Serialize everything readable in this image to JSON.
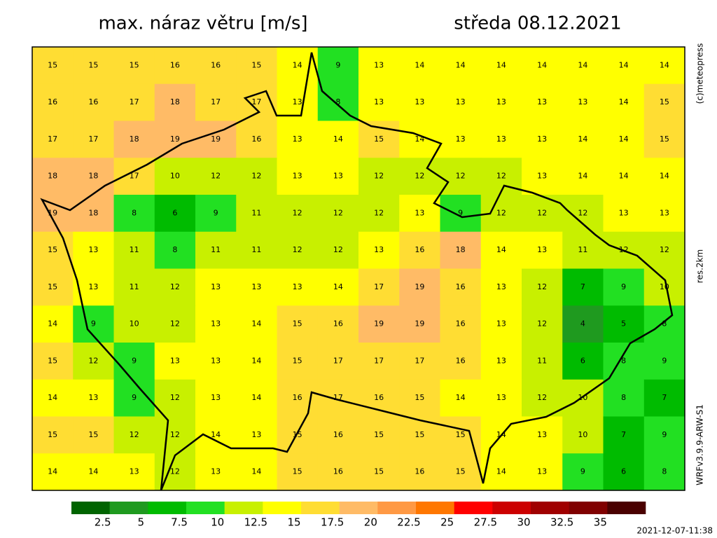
{
  "header": {
    "title": "max. náraz větru [m/s]",
    "date": "středa 08.12.2021"
  },
  "side": {
    "copyright": "(c)meteopress",
    "resolution": "res.2km",
    "model": "WRFv3.9.9-ARW-S1"
  },
  "footer": {
    "timestamp": "2021-12-07-11:38"
  },
  "colorbar": {
    "ticks": [
      2.5,
      5,
      7.5,
      10,
      12.5,
      15,
      17.5,
      20,
      22.5,
      25,
      27.5,
      30,
      32.5,
      35
    ],
    "colors": [
      "#006400",
      "#1f9a1f",
      "#00bb00",
      "#22e022",
      "#c8f000",
      "#ffff00",
      "#ffdd33",
      "#ffbb66",
      "#ff9944",
      "#ff7700",
      "#ff0000",
      "#cc0000",
      "#a00000",
      "#800000",
      "#4a0000"
    ]
  },
  "field": {
    "rows": [
      [
        15,
        15,
        15,
        16,
        16,
        15,
        14,
        9,
        13,
        14,
        14,
        14,
        14,
        14,
        14,
        14
      ],
      [
        16,
        16,
        17,
        18,
        17,
        17,
        13,
        8,
        13,
        13,
        13,
        13,
        13,
        13,
        14,
        15
      ],
      [
        17,
        17,
        18,
        19,
        19,
        16,
        13,
        14,
        15,
        14,
        13,
        13,
        13,
        14,
        14,
        15
      ],
      [
        18,
        18,
        17,
        10,
        12,
        12,
        13,
        13,
        12,
        12,
        12,
        12,
        13,
        14,
        14,
        14
      ],
      [
        19,
        18,
        8,
        6,
        9,
        11,
        12,
        12,
        12,
        13,
        9,
        12,
        12,
        12,
        13,
        13
      ],
      [
        15,
        13,
        11,
        8,
        11,
        11,
        12,
        12,
        13,
        16,
        18,
        14,
        13,
        11,
        12,
        12
      ],
      [
        15,
        13,
        11,
        12,
        13,
        13,
        13,
        14,
        17,
        19,
        16,
        13,
        12,
        7,
        9,
        10
      ],
      [
        14,
        9,
        10,
        12,
        13,
        14,
        15,
        16,
        19,
        19,
        16,
        13,
        12,
        4,
        5,
        8
      ],
      [
        15,
        12,
        9,
        13,
        13,
        14,
        15,
        17,
        17,
        17,
        16,
        13,
        11,
        6,
        8,
        9
      ],
      [
        14,
        13,
        9,
        12,
        13,
        14,
        16,
        17,
        16,
        15,
        14,
        13,
        12,
        10,
        8,
        7
      ],
      [
        15,
        15,
        12,
        12,
        14,
        13,
        15,
        16,
        15,
        15,
        15,
        14,
        13,
        10,
        7,
        9
      ],
      [
        14,
        14,
        13,
        12,
        13,
        14,
        15,
        16,
        15,
        16,
        15,
        14,
        13,
        9,
        6,
        8
      ]
    ]
  }
}
